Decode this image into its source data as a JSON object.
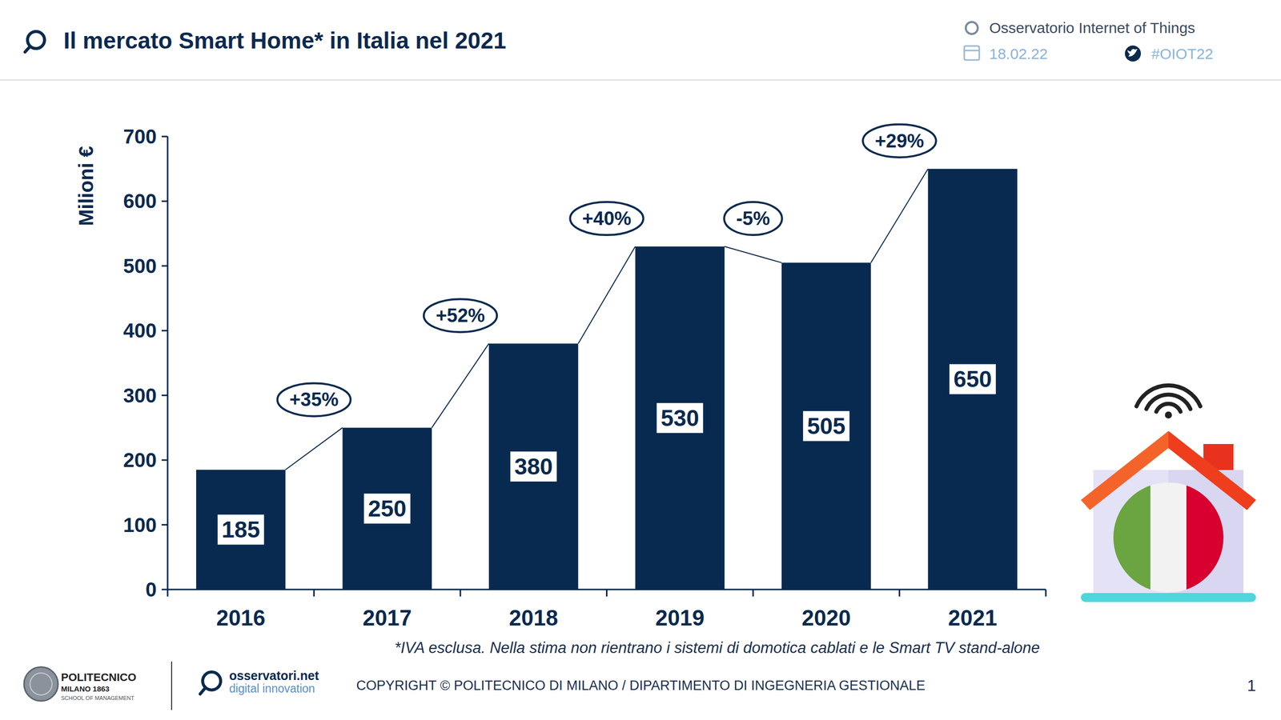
{
  "header": {
    "source": "Osservatorio Internet of Things",
    "date": "18.02.22",
    "hashtag": "#OIOT22"
  },
  "chart_data": {
    "type": "bar",
    "title": "Il mercato Smart Home* in Italia nel 2021",
    "y_label": "Milioni €",
    "categories": [
      "2016",
      "2017",
      "2018",
      "2019",
      "2020",
      "2021"
    ],
    "values": [
      185,
      250,
      380,
      530,
      505,
      650
    ],
    "color": "#082a50",
    "ylim": [
      0,
      700
    ],
    "yticks": [
      0,
      100,
      200,
      300,
      400,
      500,
      600,
      700
    ],
    "grid": false,
    "data_labels": true,
    "annotations": [
      "+35%",
      "+52%",
      "+40%",
      "-5%",
      "+29%"
    ],
    "footnote": "*IVA esclusa. Nella stima non rientrano i sistemi di domotica cablati e le Smart TV stand-alone"
  },
  "footer": {
    "logo_1": [
      "POLITECNICO",
      "MILANO 1863",
      "SCHOOL OF MANAGEMENT"
    ],
    "logo_2": [
      "osservatori.net",
      "digital innovation"
    ],
    "copyright": "COPYRIGHT © POLITECNICO DI MILANO / DIPARTIMENTO DI INGEGNERIA GESTIONALE",
    "page": "1"
  }
}
